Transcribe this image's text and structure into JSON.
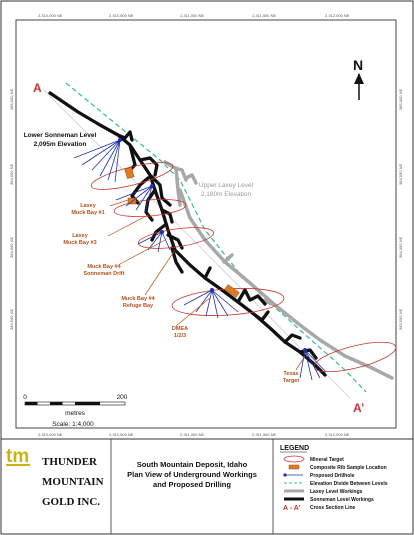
{
  "grid": {
    "top_eastings": [
      "2,310,000 NE",
      "2,310,500 NE",
      "2,311,000 NE",
      "2,311,500 NE",
      "2,312,000 NE"
    ],
    "bottom_eastings": [
      "2,310,000 NE",
      "2,310,500 NE",
      "2,311,000 NE",
      "2,311,500 NE",
      "2,312,000 NE"
    ],
    "left_northings": [
      "385,000 NE",
      "384,500 NE",
      "384,000 NE",
      "383,500 NE"
    ],
    "right_northings": [
      "385,000 NE",
      "384,500 NE",
      "384,000 NE",
      "383,500 NE"
    ]
  },
  "map": {
    "north_label": "N",
    "section_start": "A",
    "section_end": "A’",
    "lower_level_name": "Lower Sonneman Level",
    "lower_level_elev": "2,095m Elevation",
    "upper_level_name": "Upper Laxey Level",
    "upper_level_elev": "2,180m Elevation",
    "labels": {
      "laxey1_a": "Laxey",
      "laxey1_b": "Muck Bay #1",
      "laxey3_a": "Laxey",
      "laxey3_b": "Muck Bay #3",
      "muck4_drift_a": "Muck Bay #4",
      "muck4_drift_b": "Sonneman Drift",
      "muck4_refuge_a": "Muck Bay #4",
      "muck4_refuge_b": "Refuge Bay",
      "dmea_a": "DMEA",
      "dmea_b": "1/2/3",
      "texas_a": "Texas",
      "texas_b": "Target"
    },
    "scale_zero": "0",
    "scale_max": "200",
    "scale_unit": "metres",
    "scale_ratio": "Scale: 1:4,000"
  },
  "title_block": {
    "logo_mark": "tm",
    "company_line1": "THUNDER",
    "company_line2": "MOUNTAIN",
    "company_line3": "GOLD INC.",
    "title_line1": "South Mountain Deposit, Idaho",
    "title_line2": "Plan View of Underground Workings",
    "title_line3": "and Proposed Drilling",
    "legend_title": "LEGEND",
    "legend_items": [
      "Mineral Target",
      "Composite Rib Sample Location",
      "Proposed Drillhole",
      "Elevation Divide Between Levels",
      "Laxey Level Workings",
      "Sonneman Level Workings",
      "Cross Section Line"
    ],
    "legend_section_label": "A - A’"
  },
  "colors": {
    "mineral_target": "#c8332f",
    "sample": "#e07a1f",
    "drillhole": "#1f2fa8",
    "divide": "#2fbf8f",
    "laxey": "#a8a8a8",
    "sonneman": "#111111",
    "label_orange": "#b5501c",
    "logo_gold": "#c9b21a"
  }
}
